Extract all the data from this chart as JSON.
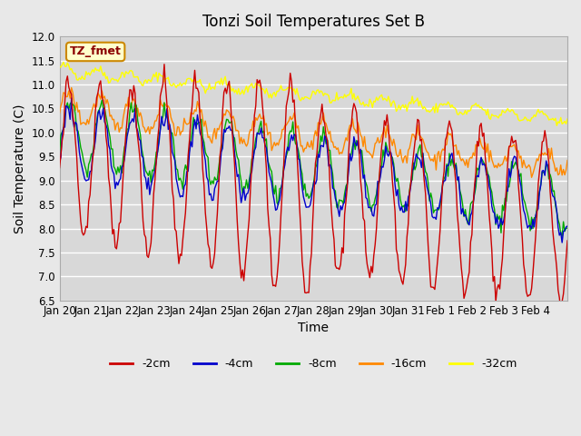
{
  "title": "Tonzi Soil Temperatures Set B",
  "xlabel": "Time",
  "ylabel": "Soil Temperature (C)",
  "ylim": [
    6.5,
    12.0
  ],
  "yticks": [
    6.5,
    7.0,
    7.5,
    8.0,
    8.5,
    9.0,
    9.5,
    10.0,
    10.5,
    11.0,
    11.5,
    12.0
  ],
  "xtick_positions": [
    0,
    1,
    2,
    3,
    4,
    5,
    6,
    7,
    8,
    9,
    10,
    11,
    12,
    13,
    14,
    15
  ],
  "xtick_labels": [
    "Jan 20",
    "Jan 21",
    "Jan 22",
    "Jan 23",
    "Jan 24",
    "Jan 25",
    "Jan 26",
    "Jan 27",
    "Jan 28",
    "Jan 29",
    "Jan 30",
    "Jan 31",
    "Feb 1",
    "Feb 2",
    "Feb 3",
    "Feb 4"
  ],
  "colors": {
    "-2cm": "#cc0000",
    "-4cm": "#0000cc",
    "-8cm": "#00aa00",
    "-16cm": "#ff8800",
    "-32cm": "#ffff00"
  },
  "legend_label": "TZ_fmet",
  "background_color": "#e8e8e8",
  "plot_bg_color": "#d8d8d8",
  "grid_color": "#ffffff",
  "n_days": 16
}
